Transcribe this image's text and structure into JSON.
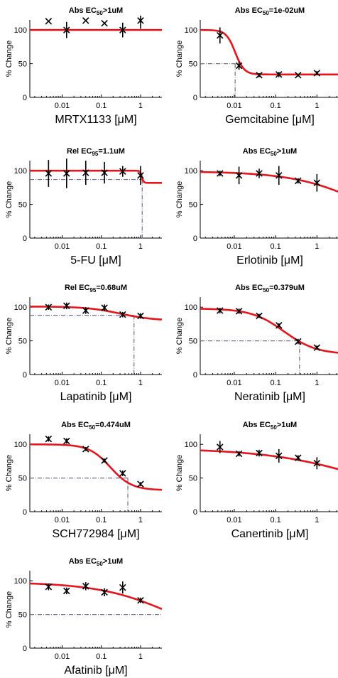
{
  "figure": {
    "ylabel": "% Change",
    "colors": {
      "fit": "#e8141c",
      "marker": "#000000",
      "refline": "#7a6a8a",
      "axis": "#000000"
    }
  },
  "chart_data": [
    {
      "type": "scatter",
      "title_prefix": "Abs EC",
      "title_sub": "50",
      "title_suffix": ">1uM",
      "xlabel": "MRTX1133 [μM]",
      "xscale": "log",
      "xlim": [
        0.0015,
        3.5
      ],
      "ylim": [
        0,
        115
      ],
      "xticks": [
        "0.01",
        "0.1",
        "1"
      ],
      "yticks": [
        "0",
        "50",
        "100"
      ],
      "x": [
        0.0045,
        0.013,
        0.04,
        0.12,
        0.35,
        1.0
      ],
      "y": [
        113,
        100,
        114,
        110,
        100,
        114
      ],
      "err": [
        null,
        12,
        null,
        null,
        11,
        12
      ],
      "fit": {
        "top": 100,
        "bottom": 100,
        "ec": 1,
        "hill": 1
      },
      "ref": null
    },
    {
      "type": "scatter",
      "title_prefix": "Abs EC",
      "title_sub": "50",
      "title_suffix": "=1e-02uM",
      "xlabel": "Gemcitabine [μM]",
      "xscale": "log",
      "xlim": [
        0.0015,
        3.5
      ],
      "ylim": [
        0,
        115
      ],
      "xticks": [
        "0.01",
        "0.1",
        "1"
      ],
      "yticks": [
        "0",
        "50",
        "100"
      ],
      "x": [
        0.0045,
        0.013,
        0.04,
        0.12,
        0.35,
        1.0
      ],
      "y": [
        92,
        47,
        33,
        34,
        33,
        36
      ],
      "err": [
        12,
        6,
        3,
        4,
        2,
        3
      ],
      "fit": {
        "top": 100,
        "bottom": 34,
        "ec": 0.0105,
        "hill": 4
      },
      "ref": {
        "x": 0.0105,
        "y": 50
      }
    },
    {
      "type": "scatter",
      "title_prefix": "Rel EC",
      "title_sub": "95",
      "title_suffix": "=1.1uM",
      "xlabel": "5-FU [μM]",
      "xscale": "log",
      "xlim": [
        0.0015,
        3.5
      ],
      "ylim": [
        0,
        115
      ],
      "xticks": [
        "0.01",
        "0.1",
        "1"
      ],
      "yticks": [
        "0",
        "50",
        "100"
      ],
      "x": [
        0.0045,
        0.013,
        0.04,
        0.12,
        0.35,
        1.0
      ],
      "y": [
        96,
        96,
        97,
        97,
        99,
        93
      ],
      "err": [
        20,
        22,
        18,
        16,
        8,
        14
      ],
      "fit": {
        "top": 100,
        "bottom": 82,
        "ec": 1.08,
        "hill": 20
      },
      "ref": {
        "x": 1.1,
        "y": 87
      }
    },
    {
      "type": "scatter",
      "title_prefix": "Abs EC",
      "title_sub": "50",
      "title_suffix": ">1uM",
      "xlabel": "Erlotinib [μM]",
      "xscale": "log",
      "xlim": [
        0.0015,
        3.5
      ],
      "ylim": [
        0,
        115
      ],
      "xticks": [
        "0.01",
        "0.1",
        "1"
      ],
      "yticks": [
        "0",
        "50",
        "100"
      ],
      "x": [
        0.0045,
        0.013,
        0.04,
        0.12,
        0.35,
        1.0
      ],
      "y": [
        96,
        93,
        96,
        93,
        85,
        82
      ],
      "err": [
        4,
        13,
        7,
        14,
        4,
        13
      ],
      "fit": {
        "top": 99,
        "bottom": 0,
        "ec": 17,
        "hill": 0.5
      },
      "ref": null
    },
    {
      "type": "scatter",
      "title_prefix": "Rel EC",
      "title_sub": "95",
      "title_suffix": "=0.68uM",
      "xlabel": "Lapatinib [μM]",
      "xscale": "log",
      "xlim": [
        0.0015,
        3.5
      ],
      "ylim": [
        0,
        115
      ],
      "xticks": [
        "0.01",
        "0.1",
        "1"
      ],
      "yticks": [
        "0",
        "50",
        "100"
      ],
      "x": [
        0.0045,
        0.013,
        0.04,
        0.12,
        0.35,
        1.0
      ],
      "y": [
        100,
        102,
        95,
        99,
        89,
        87
      ],
      "err": [
        4,
        5,
        5,
        5,
        4,
        4
      ],
      "fit": {
        "top": 101,
        "bottom": 80,
        "ec": 0.3,
        "hill": 1
      },
      "ref": {
        "x": 0.68,
        "y": 88
      }
    },
    {
      "type": "scatter",
      "title_prefix": "Abs EC",
      "title_sub": "50",
      "title_suffix": "=0.379uM",
      "xlabel": "Neratinib [μM]",
      "xscale": "log",
      "xlim": [
        0.0015,
        3.5
      ],
      "ylim": [
        0,
        115
      ],
      "xticks": [
        "0.01",
        "0.1",
        "1"
      ],
      "yticks": [
        "0",
        "50",
        "100"
      ],
      "x": [
        0.0045,
        0.013,
        0.04,
        0.12,
        0.35,
        1.0
      ],
      "y": [
        95,
        94,
        87,
        73,
        49,
        40
      ],
      "err": [
        4,
        4,
        3,
        3,
        4,
        3
      ],
      "fit": {
        "top": 98,
        "bottom": 30,
        "ec": 0.16,
        "hill": 1.1
      },
      "ref": {
        "x": 0.379,
        "y": 50
      }
    },
    {
      "type": "scatter",
      "title_prefix": "Abs EC",
      "title_sub": "50",
      "title_suffix": "=0.474uM",
      "xlabel": "SCH772984 [μM]",
      "xscale": "log",
      "xlim": [
        0.0015,
        3.5
      ],
      "ylim": [
        0,
        115
      ],
      "xticks": [
        "0.01",
        "0.1",
        "1"
      ],
      "yticks": [
        "0",
        "50",
        "100"
      ],
      "x": [
        0.0045,
        0.013,
        0.04,
        0.12,
        0.35,
        1.0
      ],
      "y": [
        108,
        105,
        93,
        76,
        57,
        41
      ],
      "err": [
        4,
        4,
        3,
        3,
        4,
        3
      ],
      "fit": {
        "top": 100,
        "bottom": 32,
        "ec": 0.17,
        "hill": 1.6
      },
      "ref": {
        "x": 0.474,
        "y": 50
      }
    },
    {
      "type": "scatter",
      "title_prefix": "Abs EC",
      "title_sub": "50",
      "title_suffix": ">1uM",
      "xlabel": "Canertinib [μM]",
      "xscale": "log",
      "xlim": [
        0.0015,
        3.5
      ],
      "ylim": [
        0,
        115
      ],
      "xticks": [
        "0.01",
        "0.1",
        "1"
      ],
      "yticks": [
        "0",
        "50",
        "100"
      ],
      "x": [
        0.0045,
        0.013,
        0.04,
        0.12,
        0.35,
        1.0
      ],
      "y": [
        96,
        86,
        87,
        83,
        80,
        72
      ],
      "err": [
        9,
        4,
        5,
        10,
        4,
        9
      ],
      "fit": {
        "top": 94,
        "bottom": 0,
        "ec": 25,
        "hill": 0.35
      },
      "ref": null
    },
    {
      "type": "scatter",
      "title_prefix": "Abs EC",
      "title_sub": "50",
      "title_suffix": ">1uM",
      "xlabel": "Afatinib [μM]",
      "xscale": "log",
      "xlim": [
        0.0015,
        3.5
      ],
      "ylim": [
        0,
        115
      ],
      "xticks": [
        "0.01",
        "0.1",
        "1"
      ],
      "yticks": [
        "0",
        "50",
        "100"
      ],
      "x": [
        0.0045,
        0.013,
        0.04,
        0.12,
        0.35,
        1.0
      ],
      "y": [
        91,
        85,
        92,
        83,
        90,
        71
      ],
      "err": [
        5,
        5,
        6,
        6,
        9,
        4
      ],
      "fit": {
        "top": 98,
        "bottom": 0,
        "ec": 8,
        "hill": 0.45
      },
      "ref": {
        "x": null,
        "y": 50
      }
    }
  ]
}
